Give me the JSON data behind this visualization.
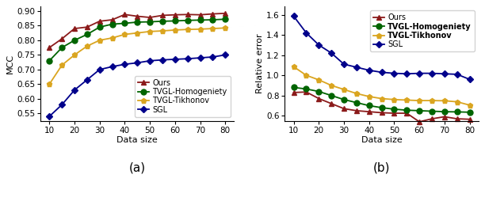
{
  "x": [
    10,
    15,
    20,
    25,
    30,
    35,
    40,
    45,
    50,
    55,
    60,
    65,
    70,
    75,
    80
  ],
  "mcc_ours": [
    0.775,
    0.805,
    0.84,
    0.845,
    0.865,
    0.87,
    0.888,
    0.882,
    0.878,
    0.885,
    0.887,
    0.888,
    0.887,
    0.89,
    0.892
  ],
  "mcc_homogen": [
    0.73,
    0.775,
    0.8,
    0.82,
    0.845,
    0.855,
    0.858,
    0.862,
    0.863,
    0.865,
    0.866,
    0.868,
    0.869,
    0.87,
    0.872
  ],
  "mcc_tikhonov": [
    0.65,
    0.715,
    0.75,
    0.78,
    0.8,
    0.808,
    0.82,
    0.825,
    0.83,
    0.832,
    0.835,
    0.837,
    0.838,
    0.84,
    0.842
  ],
  "mcc_sgl": [
    0.54,
    0.58,
    0.63,
    0.665,
    0.7,
    0.71,
    0.718,
    0.723,
    0.73,
    0.733,
    0.735,
    0.737,
    0.74,
    0.743,
    0.75
  ],
  "rel_ours": [
    0.83,
    0.835,
    0.77,
    0.72,
    0.67,
    0.65,
    0.64,
    0.63,
    0.625,
    0.625,
    0.54,
    0.57,
    0.59,
    0.57,
    0.565
  ],
  "rel_homogen": [
    0.88,
    0.865,
    0.84,
    0.8,
    0.76,
    0.73,
    0.7,
    0.68,
    0.665,
    0.655,
    0.65,
    0.645,
    0.64,
    0.638,
    0.635
  ],
  "rel_tikhonov": [
    1.085,
    1.0,
    0.955,
    0.9,
    0.86,
    0.82,
    0.79,
    0.77,
    0.76,
    0.755,
    0.75,
    0.75,
    0.748,
    0.738,
    0.705
  ],
  "rel_sgl": [
    1.585,
    1.42,
    1.3,
    1.22,
    1.11,
    1.08,
    1.05,
    1.03,
    1.02,
    1.015,
    1.02,
    1.02,
    1.015,
    1.01,
    0.96
  ],
  "color_ours": "#8B1A1A",
  "color_homogen": "#006400",
  "color_tikhonov": "#DAA520",
  "color_sgl": "#00008B",
  "label_ours": "Ours",
  "label_homogen": "TVGL-Homogeniety",
  "label_tikhonov": "TVGL-Tikhonov",
  "label_sgl": "SGL",
  "mcc_ylabel": "MCC",
  "rel_ylabel": "Relative error",
  "xlabel": "Data size",
  "mcc_ylim": [
    0.525,
    0.915
  ],
  "rel_ylim": [
    0.55,
    1.68
  ],
  "mcc_yticks": [
    0.55,
    0.6,
    0.65,
    0.7,
    0.75,
    0.8,
    0.85,
    0.9
  ],
  "rel_yticks": [
    0.6,
    0.8,
    1.0,
    1.2,
    1.4,
    1.6
  ],
  "xticks": [
    10,
    20,
    30,
    40,
    50,
    60,
    70,
    80
  ],
  "caption_a": "(a)",
  "caption_b": "(b)"
}
